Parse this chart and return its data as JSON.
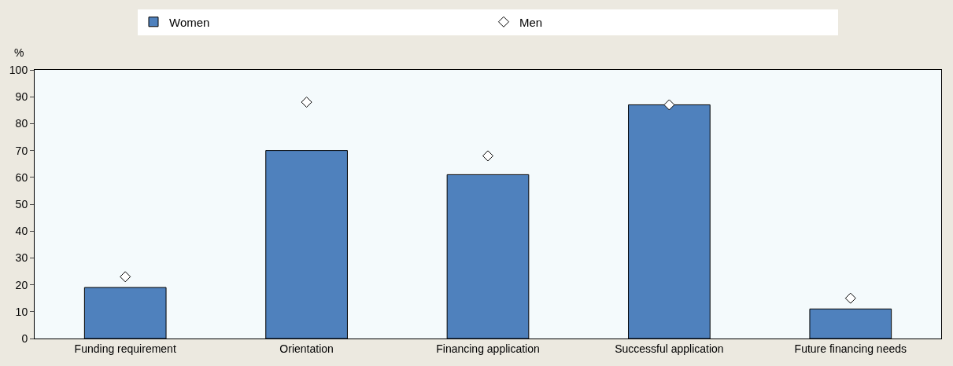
{
  "chart_data": {
    "type": "bar",
    "ylabel": "%",
    "categories": [
      "Funding requirement",
      "Orientation",
      "Financing application",
      "Successful application",
      "Future financing needs"
    ],
    "series": [
      {
        "name": "Women",
        "color": "#4f81bd",
        "values": [
          19,
          70,
          61,
          87,
          11
        ]
      },
      {
        "name": "Men",
        "type": "scatter",
        "color": "#ffffff",
        "marker": "diamond",
        "values": [
          23,
          88,
          68,
          87,
          15
        ]
      }
    ],
    "ylim": [
      0,
      100
    ],
    "yticks": [
      0,
      10,
      20,
      30,
      40,
      50,
      60,
      70,
      80,
      90,
      100
    ],
    "grid": false,
    "legend": "top"
  }
}
